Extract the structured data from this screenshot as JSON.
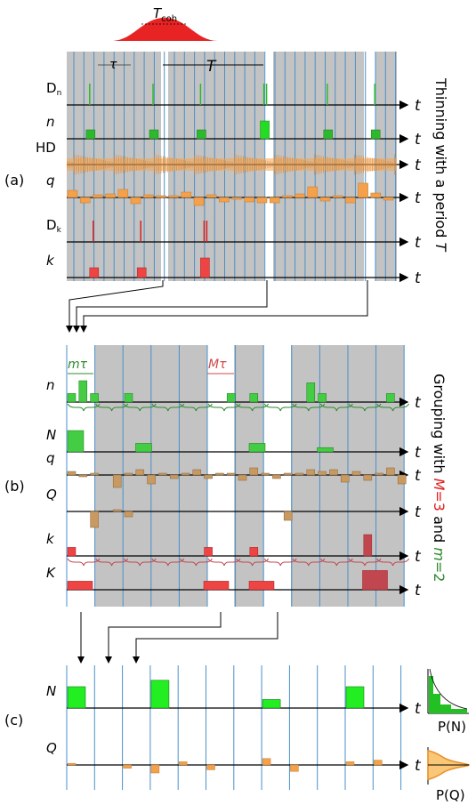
{
  "colors": {
    "slot_line": "#4a90c8",
    "shade": "#c3c3c3",
    "green": "#2eb82e",
    "green_light": "#44cc44",
    "orange": "#f5a04a",
    "brown": "#c89a62",
    "red": "#ee4444",
    "red_dark": "#c0474f",
    "axis": "#000000",
    "pulse": "#e82323"
  },
  "panel_a": {
    "label": "(a)",
    "t_coh": {
      "base": "T",
      "sub": "coh"
    },
    "tau": "τ",
    "period": "T",
    "side_title": {
      "prefix": "Thinning with a period ",
      "var": "T"
    },
    "rows": [
      {
        "id": "Dn",
        "base": "D",
        "sub": "n"
      },
      {
        "id": "n",
        "base": "n"
      },
      {
        "id": "HD",
        "base": "HD"
      },
      {
        "id": "q",
        "base": "q"
      },
      {
        "id": "Dk",
        "base": "D",
        "sub": "k"
      },
      {
        "id": "k",
        "base": "k"
      }
    ],
    "n_counts": [
      0,
      1,
      0,
      0,
      0,
      1,
      0,
      0,
      1,
      0,
      0,
      0,
      2,
      0,
      0,
      0,
      1,
      0,
      0,
      1,
      0
    ],
    "k_counts": [
      0,
      1,
      0,
      0,
      1,
      0,
      0,
      0,
      2,
      0,
      0,
      0,
      0,
      0,
      0,
      0,
      0,
      0,
      0,
      0,
      0
    ],
    "q_values": [
      0.8,
      -0.6,
      0.3,
      0.4,
      0.9,
      -0.7,
      0.3,
      0.2,
      0.2,
      0.6,
      -0.9,
      0.3,
      -0.5,
      -0.2,
      -0.5,
      -0.6,
      -0.6,
      0.2,
      0.4,
      1.2,
      -0.4,
      0.2,
      -0.6,
      1.6,
      0.5,
      -0.3
    ]
  },
  "panel_b": {
    "label": "(b)",
    "m_tau": {
      "var": "m",
      "tau": "τ"
    },
    "M_tau": {
      "var": "M",
      "tau": "τ"
    },
    "side_title": {
      "prefix": "Grouping with ",
      "M": "M",
      "M_eq": "=3",
      "and": " and ",
      "m": "m",
      "m_eq": "=2"
    },
    "rows": [
      "n",
      "N",
      "q",
      "Q",
      "k",
      "K"
    ],
    "n_values": [
      0.4,
      1.0,
      0.4,
      0,
      0,
      0.4,
      0,
      0,
      0,
      0,
      0,
      0,
      0,
      0,
      0.4,
      0,
      0.4,
      0,
      0,
      0,
      0,
      0.9,
      0.4,
      0,
      0,
      0,
      0,
      0,
      0.4,
      0
    ],
    "N_values": [
      1.0,
      0,
      0,
      0.4,
      0,
      0,
      0,
      0,
      0.4,
      0,
      0,
      0.2,
      0,
      0,
      0
    ],
    "q_values": [
      0.2,
      -0.1,
      0.1,
      0,
      -0.7,
      0.1,
      0.3,
      -0.5,
      0.1,
      -0.2,
      0.1,
      0.3,
      -0.2,
      0.1,
      0.1,
      -0.3,
      0.4,
      0.1,
      -0.2,
      0.1,
      0.1,
      0.3,
      0.2,
      0.3,
      -0.4,
      0.2,
      -0.3,
      0.1,
      0.4,
      -0.5
    ],
    "Q_values": [
      0,
      0,
      -0.9,
      0,
      0.1,
      -0.3,
      0,
      0,
      0,
      0,
      0,
      0,
      0,
      0,
      0,
      0,
      0,
      0,
      0,
      -0.5,
      0,
      0,
      0,
      0,
      0,
      0,
      0,
      0,
      0,
      0
    ],
    "k_values": [
      0.4,
      0,
      0,
      0,
      0,
      0,
      0,
      0,
      0,
      0,
      0,
      0,
      0.4,
      0,
      0,
      0,
      0.4,
      0,
      0,
      0,
      0,
      0,
      0,
      0,
      0,
      0,
      1.0,
      0,
      0,
      0
    ],
    "K_values": [
      0.4,
      0,
      0,
      0,
      0,
      0,
      0.4,
      0,
      0.4,
      0,
      0,
      0,
      0,
      0.9,
      0
    ]
  },
  "panel_c": {
    "label": "(c)",
    "rows": [
      "N",
      "Q"
    ],
    "N_values": [
      1.0,
      0,
      0,
      1.3,
      0,
      0,
      0,
      0.4,
      0,
      0,
      1.0,
      0,
      0
    ],
    "Q_values": [
      0.1,
      0,
      -0.2,
      -0.5,
      0.2,
      -0.3,
      0,
      0.4,
      -0.4,
      0,
      0.2,
      0.3,
      0
    ],
    "pn": {
      "label": "P(N)",
      "var": "N"
    },
    "pq": {
      "label": "P(Q)",
      "var": "Q"
    }
  },
  "axis_label": "t"
}
